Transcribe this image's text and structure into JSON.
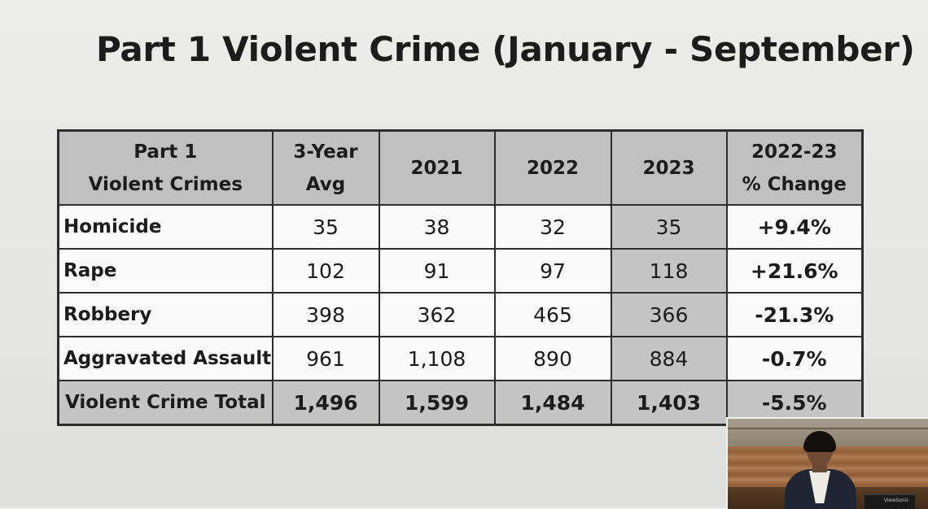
{
  "slide": {
    "title": "Part 1 Violent Crime (January - September)"
  },
  "table": {
    "headers": {
      "crime_line1": "Part 1",
      "crime_line2": "Violent Crimes",
      "avg_line1": "3-Year",
      "avg_line2": "Avg",
      "y2021": "2021",
      "y2022": "2022",
      "y2023": "2023",
      "change_line1": "2022-23",
      "change_line2": "% Change"
    },
    "rows": [
      {
        "crime": "Homicide",
        "avg": "35",
        "y2021": "38",
        "y2022": "32",
        "y2023": "35",
        "change": "+9.4%"
      },
      {
        "crime": "Rape",
        "avg": "102",
        "y2021": "91",
        "y2022": "97",
        "y2023": "118",
        "change": "+21.6%"
      },
      {
        "crime": "Robbery",
        "avg": "398",
        "y2021": "362",
        "y2022": "465",
        "y2023": "366",
        "change": "-21.3%"
      },
      {
        "crime": "Aggravated Assault",
        "avg": "961",
        "y2021": "1,108",
        "y2022": "890",
        "y2023": "884",
        "change": "-0.7%"
      }
    ],
    "total": {
      "crime": "Violent Crime Total",
      "avg": "1,496",
      "y2021": "1,599",
      "y2022": "1,484",
      "y2023": "1,403",
      "change": "-5.5%"
    }
  },
  "colors": {
    "increase": "#d42a24",
    "decrease": "#2a7cc0",
    "header_fill": "#c0c0c0"
  },
  "video_inset": {
    "monitor_brand": "ViewSonic"
  }
}
